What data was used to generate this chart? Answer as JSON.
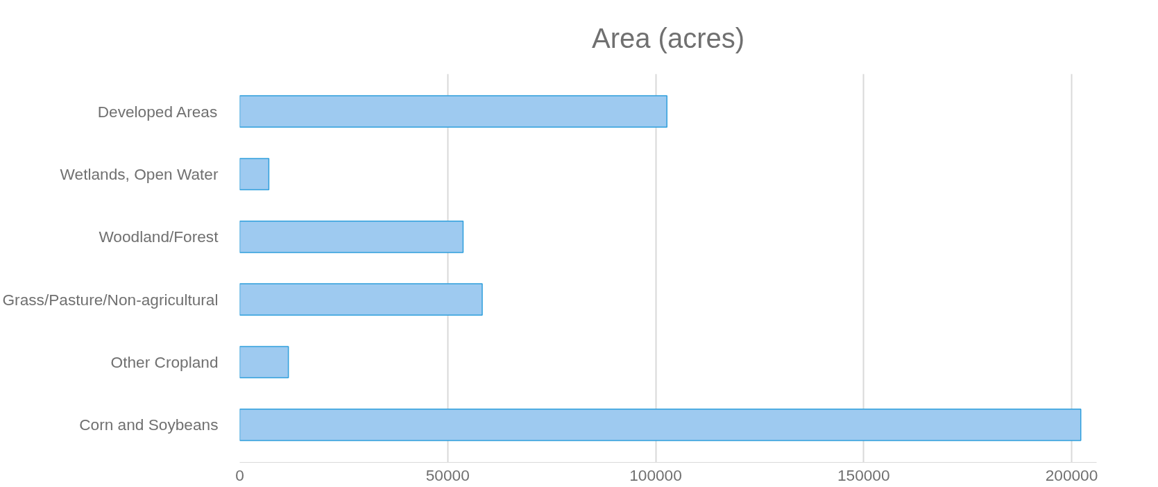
{
  "chart_data": {
    "type": "bar",
    "orientation": "horizontal",
    "title": "Area (acres)",
    "categories": [
      "Developed Areas",
      "Wetlands, Open Water",
      "Woodland/Forest",
      "Grass/Pasture/Non-agricultural",
      "Other Cropland",
      "Corn and Soybeans"
    ],
    "values": [
      102700,
      7000,
      53700,
      58300,
      11700,
      202200
    ],
    "color": "#9ecaf0",
    "xlim": [
      0,
      206000
    ],
    "xticks": [
      0,
      50000,
      100000,
      150000,
      200000
    ],
    "grid": "x"
  }
}
